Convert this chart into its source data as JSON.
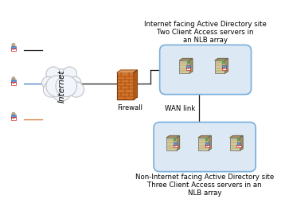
{
  "bg_color": "#ffffff",
  "text_color": "#000000",
  "top_label": "Internet facing Active Directory site\nTwo Client Access servers in\nan NLB array",
  "bottom_label": "Non-Internet facing Active Directory site\nThree Client Access servers in an\nNLB array",
  "wan_label": "WAN link",
  "firewall_label": "Firewall",
  "internet_label": "Internet",
  "box_fill": "#dce9f5",
  "box_edge": "#7aaedb",
  "cloud_fill": "#f2f6fc",
  "cloud_edge": "#bbbbbb",
  "firewall_color": "#d4732a",
  "firewall_edge": "#7a3a0a",
  "line_color_black": "#1a1a1a",
  "line_color_blue": "#4472c4",
  "line_color_orange": "#d4732a",
  "user_head_color": "#c8a882",
  "user_body_color": "#5b9bd5",
  "server_color": "#d4c99a",
  "server_dark": "#a09060",
  "server_green": "#44aa44",
  "envelope_red": "#cc2222"
}
